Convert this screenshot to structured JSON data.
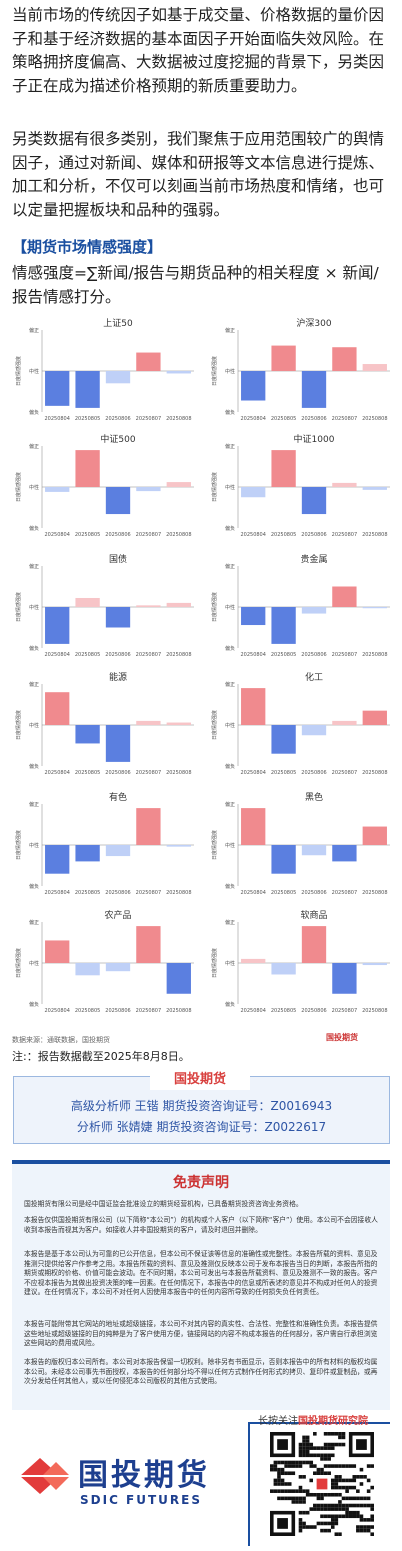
{
  "intro": {
    "p1": "当前市场的传统因子如基于成交量、价格数据的量价因子和基于经济数据的基本面因子开始面临失效风险。在策略拥挤度偏高、大数据被过度挖掘的背景下，另类因子正在成为描述价格预期的新质重要助力。",
    "p2": "另类数据有很多类别，我们聚焦于应用范围较广的舆情因子，通过对新闻、媒体和研报等文本信息进行提炼、加工和分析，不仅可以刻画当前市场热度和情绪，也可以定量把握板块和品种的强弱。",
    "section_title": "【期货市场情感强度】",
    "formula": "情感强度=∑新闻/报告与期货品种的相关程度 × 新闻/报告情感打分。"
  },
  "chart_common": {
    "ylabel": "日度情感强度",
    "ytick_top": "偏正",
    "ytick_mid": "中性",
    "ytick_bottom": "偏负",
    "ylim": [
      -1,
      1
    ],
    "colors": {
      "pos_strong": "#f08a8e",
      "pos_weak": "#f7c4c7",
      "neg_strong": "#5b7fe0",
      "neg_weak": "#bfd0f7"
    }
  },
  "chart_data": [
    {
      "type": "bar",
      "title": "上证50",
      "categories": [
        "20250804",
        "20250805",
        "20250806",
        "20250807",
        "20250808"
      ],
      "values": [
        -0.85,
        -0.9,
        -0.3,
        0.45,
        -0.06
      ]
    },
    {
      "type": "bar",
      "title": "沪深300",
      "categories": [
        "20250804",
        "20250805",
        "20250806",
        "20250807",
        "20250808"
      ],
      "values": [
        -0.72,
        0.62,
        -0.9,
        0.58,
        0.17
      ]
    },
    {
      "type": "bar",
      "title": "中证500",
      "categories": [
        "20250804",
        "20250805",
        "20250806",
        "20250807",
        "20250808"
      ],
      "values": [
        -0.12,
        0.9,
        -0.66,
        -0.1,
        0.12
      ]
    },
    {
      "type": "bar",
      "title": "中证1000",
      "categories": [
        "20250804",
        "20250805",
        "20250806",
        "20250807",
        "20250808"
      ],
      "values": [
        -0.25,
        0.9,
        -0.66,
        0.1,
        -0.07
      ]
    },
    {
      "type": "bar",
      "title": "国债",
      "categories": [
        "20250804",
        "20250805",
        "20250806",
        "20250807",
        "20250808"
      ],
      "values": [
        -0.9,
        0.22,
        -0.5,
        0.04,
        0.1
      ]
    },
    {
      "type": "bar",
      "title": "贵金属",
      "categories": [
        "20250804",
        "20250805",
        "20250806",
        "20250807",
        "20250808"
      ],
      "values": [
        -0.44,
        -0.9,
        -0.16,
        0.5,
        -0.03
      ]
    },
    {
      "type": "bar",
      "title": "能源",
      "categories": [
        "20250804",
        "20250805",
        "20250806",
        "20250807",
        "20250808"
      ],
      "values": [
        0.8,
        -0.45,
        -0.9,
        0.1,
        0.06
      ]
    },
    {
      "type": "bar",
      "title": "化工",
      "categories": [
        "20250804",
        "20250805",
        "20250806",
        "20250807",
        "20250808"
      ],
      "values": [
        0.9,
        -0.7,
        -0.25,
        0.1,
        0.35
      ]
    },
    {
      "type": "bar",
      "title": "有色",
      "categories": [
        "20250804",
        "20250805",
        "20250806",
        "20250807",
        "20250808"
      ],
      "values": [
        -0.7,
        -0.4,
        -0.27,
        0.9,
        -0.04
      ]
    },
    {
      "type": "bar",
      "title": "黑色",
      "categories": [
        "20250804",
        "20250805",
        "20250806",
        "20250807",
        "20250808"
      ],
      "values": [
        0.9,
        -0.7,
        -0.25,
        -0.4,
        0.45
      ]
    },
    {
      "type": "bar",
      "title": "农产品",
      "categories": [
        "20250804",
        "20250805",
        "20250806",
        "20250807",
        "20250808"
      ],
      "values": [
        0.55,
        -0.3,
        -0.2,
        0.9,
        -0.75
      ]
    },
    {
      "type": "bar",
      "title": "软商品",
      "categories": [
        "20250804",
        "20250805",
        "20250806",
        "20250807",
        "20250808"
      ],
      "values": [
        0.1,
        -0.28,
        0.9,
        -0.75,
        -0.05
      ]
    }
  ],
  "source": "数据来源：通联数据，国投期货",
  "source_logo": "国投期货",
  "note": "注:：报告数据截至2025年8月8日。",
  "brand_tab": "国投期货",
  "analysts": [
    "高级分析师  王锴  期货投资咨询证号：Z0016943",
    "分析师  张婧婕  期货投资咨询证号：Z0022617"
  ],
  "disclaimer": {
    "title": "免责声明",
    "paragraphs": [
      "国投期货有限公司是经中国证监会批准设立的期货经营机构，已具备期货投资咨询业务资格。",
      "本报告仅供国投期货有限公司（以下简称“本公司”）的机构或个人客户（以下简称“客户”）使用。本公司不会因接收人收到本报告而视其为客户。如接收人并非国投期货的客户，请及时退回并删除。",
      "本报告是基于本公司认为可靠的已公开信息，但本公司不保证该等信息的准确性或完整性。本报告所载的资料、意见及推测只提供给客户作参考之用。本报告所载的资料、意见及推测仅反映本公司于发布本报告当日的判断，本报告所指的期货或期权的价格、价值可能会波动。在不同时期，本公司可发出与本报告所载资料、意见及推测不一致的报告。客户不应视本报告为其做出投资决策的唯一因素。在任何情况下，本报告中的信息或所表述的意见并不构成对任何人的投资建议。在任何情况下，本公司不对任何人因使用本报告中的任何内容所导致的任何损失负任何责任。",
      "本报告可能附带其它网站的地址或超级链接，本公司不对其内容的真实性、合法性、完整性和准确性负责。本报告提供这些地址或超级链接的目的纯粹是为了客户使用方便，链接网站的内容不构成本报告的任何部分，客户需自行承担浏览这些网站的费用或风险。",
      "本报告的版权归本公司所有。本公司对本报告保留一切权利。除非另有书面显示，否则本报告中的所有材料的版权均属本公司。未经本公司事先书面授权，本报告的任何部分均不得以任何方式制作任何形式的拷贝、复印件或复制品，或再次分发给任何其他人，或以任何侵犯本公司版权的其他方式使用。"
    ]
  },
  "follow": {
    "prefix": "长按关注",
    "name": "国投期货研究院"
  },
  "logo": {
    "cn": "国投期货",
    "en": "SDIC FUTURES"
  }
}
